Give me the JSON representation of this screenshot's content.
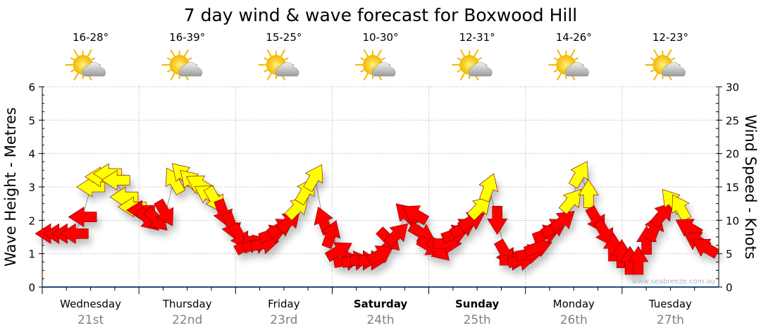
{
  "chart_data": {
    "type": "line",
    "title": "7 day wind & wave forecast for Boxwood Hill",
    "ylabel_left": "Wave Height - Metres",
    "ylabel_right": "Wind Speed - Knots",
    "ylim_left": [
      0,
      6
    ],
    "ylim_right": [
      0,
      30
    ],
    "left_ticks": [
      "0",
      "1",
      "2",
      "3",
      "4",
      "5",
      "6"
    ],
    "right_ticks": [
      "0",
      "5",
      "10",
      "15",
      "20",
      "25",
      "30"
    ],
    "grid": true,
    "watermark": "www.seabreeze.com.au",
    "days": [
      {
        "name": "Wednesday",
        "date": "21st",
        "temp": "16-28°",
        "bold": false,
        "icon": "partly-cloudy"
      },
      {
        "name": "Thursday",
        "date": "22nd",
        "temp": "16-39°",
        "bold": false,
        "icon": "partly-cloudy"
      },
      {
        "name": "Friday",
        "date": "23rd",
        "temp": "15-25°",
        "bold": false,
        "icon": "partly-cloudy"
      },
      {
        "name": "Saturday",
        "date": "24th",
        "temp": "10-30°",
        "bold": true,
        "icon": "partly-cloudy"
      },
      {
        "name": "Sunday",
        "date": "25th",
        "temp": "12-31°",
        "bold": true,
        "icon": "partly-cloudy"
      },
      {
        "name": "Monday",
        "date": "26th",
        "temp": "14-26°",
        "bold": false,
        "icon": "partly-cloudy"
      },
      {
        "name": "Tuesday",
        "date": "27th",
        "temp": "12-23°",
        "bold": false,
        "icon": "partly-cloudy"
      }
    ],
    "wind_knots": [
      8,
      8,
      8,
      8,
      10.5,
      15,
      16.5,
      17,
      16,
      13.5,
      12,
      11.5,
      10,
      10,
      11,
      16,
      17,
      16,
      15.5,
      14,
      13,
      11,
      9,
      7.5,
      6.5,
      6.5,
      6.5,
      8,
      9,
      10,
      12,
      14.5,
      16.5,
      10,
      8,
      5.5,
      4,
      4,
      4,
      4,
      5,
      7,
      8,
      11,
      11,
      8,
      6,
      5.5,
      6.5,
      8,
      9,
      10,
      12,
      15,
      10,
      5,
      4,
      4,
      5,
      6,
      8,
      9,
      10,
      13,
      17,
      14,
      10,
      8,
      6,
      5,
      4,
      4,
      7,
      9,
      11,
      13,
      12,
      9,
      7,
      6
    ],
    "wind_dir_deg": [
      270,
      270,
      270,
      270,
      270,
      270,
      270,
      270,
      270,
      270,
      270,
      270,
      135,
      135,
      150,
      330,
      315,
      315,
      300,
      300,
      150,
      160,
      160,
      150,
      60,
      70,
      80,
      70,
      60,
      45,
      45,
      30,
      30,
      340,
      20,
      60,
      80,
      80,
      90,
      90,
      60,
      135,
      45,
      315,
      300,
      120,
      120,
      135,
      90,
      70,
      60,
      60,
      45,
      20,
      180,
      150,
      90,
      80,
      80,
      70,
      70,
      60,
      50,
      40,
      30,
      0,
      150,
      150,
      0,
      0,
      0,
      0,
      0,
      20,
      40,
      320,
      330,
      300,
      300,
      300
    ],
    "colors": {
      "high": "#ffff00",
      "low": "#ff0000",
      "line": "#999999",
      "axis": "#1f4e79"
    }
  }
}
